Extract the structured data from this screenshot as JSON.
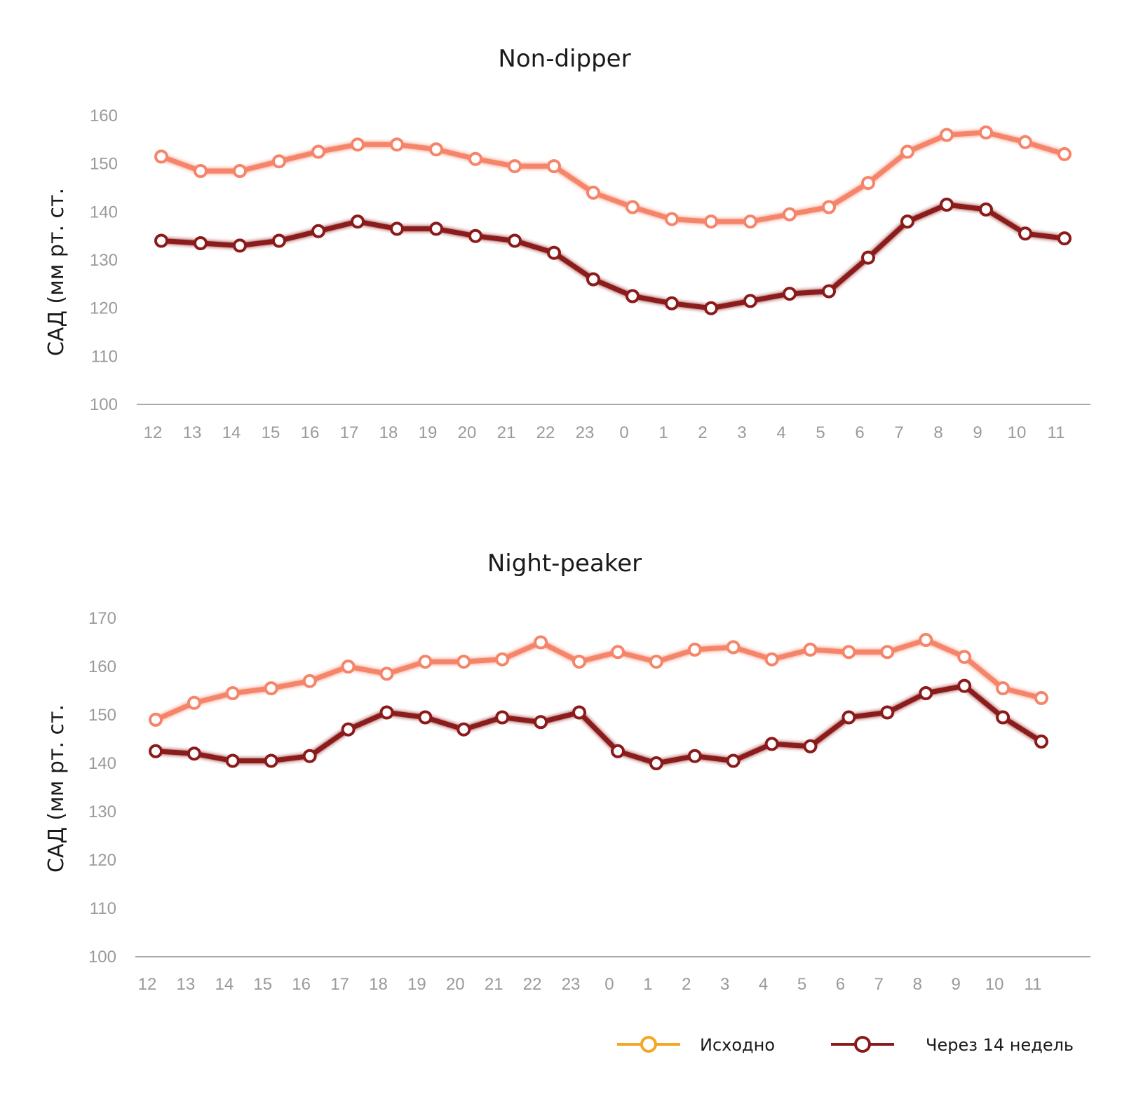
{
  "chart_data": [
    {
      "type": "line",
      "title": "Non-dipper",
      "ylabel": "САД (мм рт. ст.",
      "xlabel": "",
      "ylim": [
        100,
        160
      ],
      "yticks": [
        "100",
        "110",
        "120",
        "130",
        "140",
        "150",
        "160"
      ],
      "categories": [
        "12",
        "13",
        "14",
        "15",
        "16",
        "17",
        "18",
        "19",
        "20",
        "21",
        "22",
        "23",
        "0",
        "1",
        "2",
        "3",
        "4",
        "5",
        "6",
        "7",
        "8",
        "9",
        "10",
        "11"
      ],
      "series": [
        {
          "name": "Исходно",
          "color": "#f5856a",
          "values": [
            151.5,
            148.5,
            148.5,
            150.5,
            152.5,
            154,
            154,
            153,
            151,
            149.5,
            149.5,
            144,
            141,
            138.5,
            138,
            138,
            139.5,
            141,
            146,
            152.5,
            156,
            156.5,
            154.5,
            152
          ]
        },
        {
          "name": "Через 14 недель",
          "color": "#8b1a1a",
          "values": [
            134,
            133.5,
            133,
            134,
            136,
            138,
            136.5,
            136.5,
            135,
            134,
            131.5,
            126,
            122.5,
            121,
            120,
            121.5,
            123,
            123.5,
            130.5,
            138,
            141.5,
            140.5,
            135.5,
            134.5
          ]
        }
      ]
    },
    {
      "type": "line",
      "title": "Night-peaker",
      "ylabel": "САД (мм рт. ст.",
      "xlabel": "",
      "ylim": [
        100,
        170
      ],
      "yticks": [
        "100",
        "110",
        "120",
        "130",
        "140",
        "150",
        "160",
        "170"
      ],
      "categories": [
        "12",
        "13",
        "14",
        "15",
        "16",
        "17",
        "18",
        "19",
        "20",
        "21",
        "22",
        "23",
        "0",
        "1",
        "2",
        "3",
        "4",
        "5",
        "6",
        "7",
        "8",
        "9",
        "10",
        "11"
      ],
      "series": [
        {
          "name": "Исходно",
          "color": "#f5856a",
          "values": [
            149,
            152.5,
            154.5,
            155.5,
            157,
            160,
            158.5,
            161,
            161,
            161.5,
            165,
            161,
            163,
            161,
            163.5,
            164,
            161.5,
            163.5,
            163,
            163,
            165.5,
            162,
            155.5,
            153.5
          ]
        },
        {
          "name": "Через 14 недель",
          "color": "#8b1a1a",
          "values": [
            142.5,
            142,
            140.5,
            140.5,
            141.5,
            147,
            150.5,
            149.5,
            147,
            149.5,
            148.5,
            150.5,
            142.5,
            140,
            141.5,
            140.5,
            144,
            143.5,
            149.5,
            150.5,
            154.5,
            156,
            149.5,
            144.5
          ]
        }
      ]
    }
  ],
  "legend": {
    "items": [
      {
        "label": "Исходно",
        "color": "#f5a623"
      },
      {
        "label": "Через 14 недель",
        "color": "#8b1a1a"
      }
    ]
  }
}
